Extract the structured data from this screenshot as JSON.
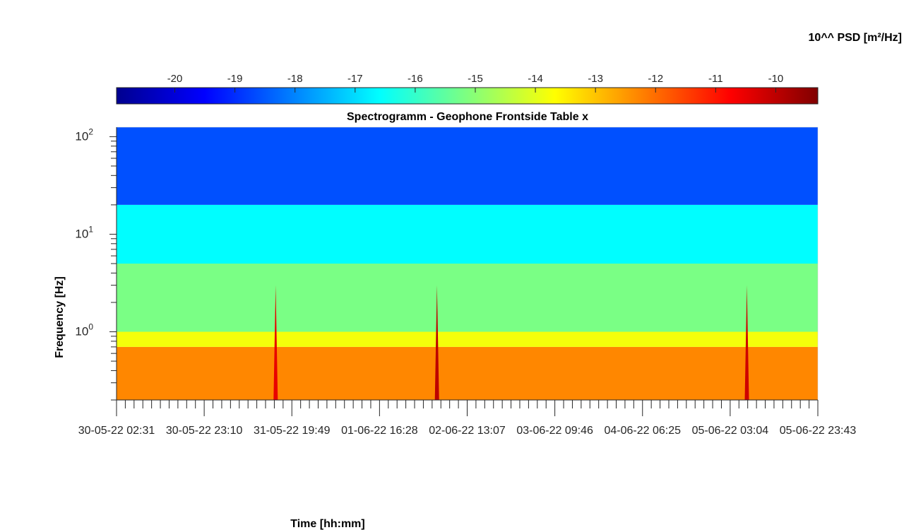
{
  "chart_data": {
    "type": "heatmap",
    "title": "Spectrogramm - Geophone Frontside Table x",
    "xlabel": "Time [hh:mm]",
    "ylabel": "Frequency [Hz]",
    "colorbar_label": "10^^ PSD [m²/Hz]",
    "colorbar_ticks": [
      -20,
      -19,
      -18,
      -17,
      -16,
      -15,
      -14,
      -13,
      -12,
      -11,
      -10
    ],
    "colorbar_range": [
      -20.97,
      -9.3
    ],
    "colorscale": "jet",
    "x_tick_labels": [
      "30-05-22 02:31",
      "30-05-22 23:10",
      "31-05-22 19:49",
      "01-06-22 16:28",
      "02-06-22 13:07",
      "03-06-22 09:46",
      "04-06-22 06:25",
      "05-06-22 03:04",
      "05-06-22 23:43"
    ],
    "y_scale": "log",
    "y_ticks": [
      {
        "base": "10",
        "exp": "0"
      },
      {
        "base": "10",
        "exp": "1"
      },
      {
        "base": "10",
        "exp": "2"
      }
    ],
    "ylim": [
      0.2,
      125
    ],
    "bands": [
      {
        "freq_range": [
          0.2,
          0.7
        ],
        "log_psd": -12.3
      },
      {
        "freq_range": [
          0.7,
          1.0
        ],
        "log_psd": -13.8
      },
      {
        "freq_range": [
          1.0,
          5.0
        ],
        "log_psd": -15.2
      },
      {
        "freq_range": [
          5.0,
          20.0
        ],
        "log_psd": -16.6
      },
      {
        "freq_range": [
          20.0,
          125.0
        ],
        "log_psd": -18.6
      }
    ],
    "events": [
      {
        "time": "31-05-22 16:00",
        "log_psd": -10.5
      },
      {
        "time": "02-06-22 06:00",
        "log_psd": -10.0
      },
      {
        "time": "05-06-22 07:00",
        "log_psd": -10.2
      }
    ]
  }
}
